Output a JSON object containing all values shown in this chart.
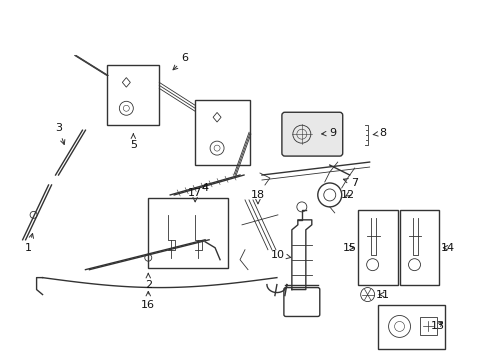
{
  "bg_color": "#ffffff",
  "line_color": "#333333",
  "label_color": "#111111",
  "fig_width": 4.89,
  "fig_height": 3.6,
  "dpi": 100
}
